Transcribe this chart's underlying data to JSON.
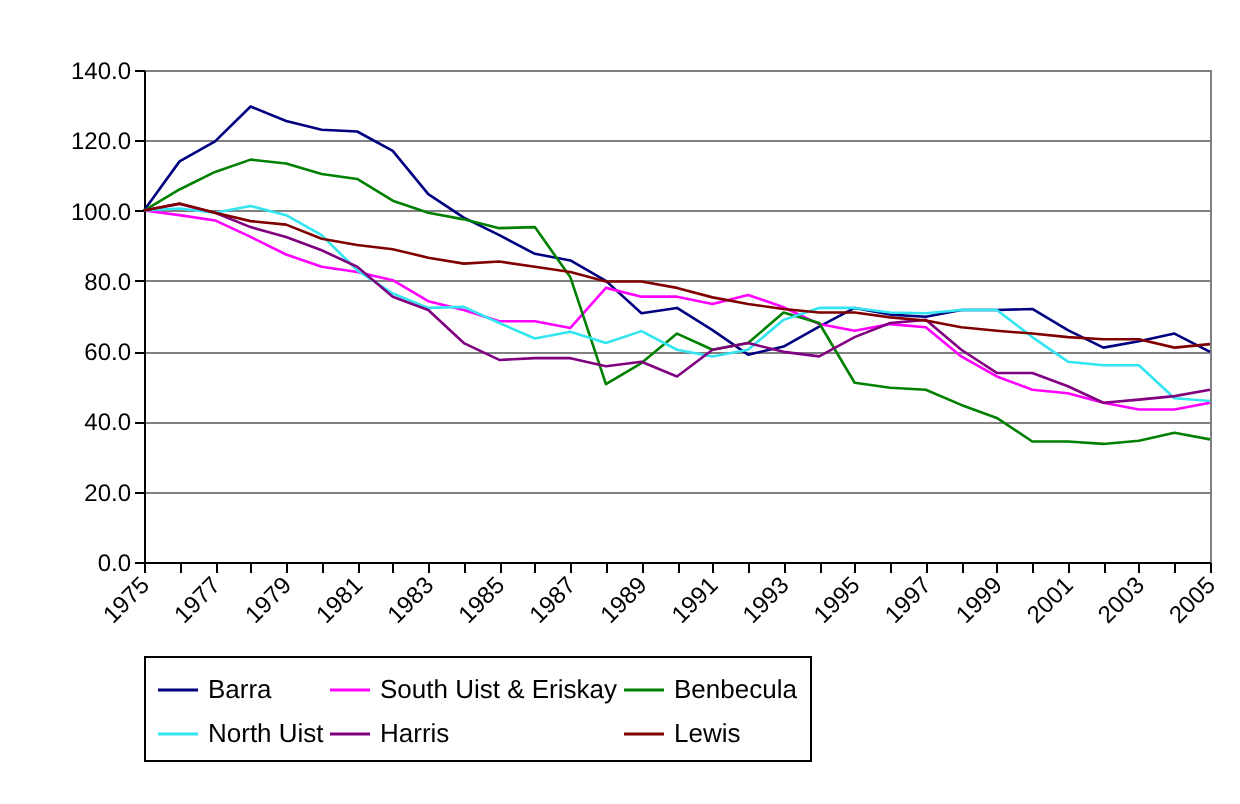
{
  "chart_data": {
    "type": "line",
    "categories": [
      "1975",
      null,
      "1977",
      null,
      "1979",
      null,
      "1981",
      null,
      "1983",
      null,
      "1985",
      null,
      "1987",
      null,
      "1989",
      null,
      "1991",
      null,
      "1993",
      null,
      "1995",
      null,
      "1997",
      null,
      "1999",
      null,
      "2001",
      null,
      "2003",
      null,
      "2005"
    ],
    "series": [
      {
        "name": "Barra",
        "color": "#000080",
        "values": [
          100,
          114,
          119.7,
          129.6,
          125.5,
          123,
          122.5,
          117,
          104.7,
          98,
          93,
          87.7,
          85.8,
          80,
          70.8,
          72.3,
          66,
          59,
          61.3,
          67,
          72.3,
          70.4,
          69.8,
          71.7,
          71.7,
          72,
          66,
          61,
          62.8,
          65,
          59.8
        ]
      },
      {
        "name": "South Uist & Eriskay",
        "color": "#ff00ff",
        "values": [
          100,
          98.7,
          97.2,
          92.5,
          87.5,
          84,
          82.5,
          80.2,
          74.2,
          71.7,
          68.5,
          68.5,
          66.6,
          78,
          75.5,
          75.5,
          73.4,
          76,
          72.5,
          67.7,
          65.8,
          67.7,
          66.8,
          58.5,
          52.8,
          49,
          48,
          45.3,
          43.4,
          43.4,
          45.3
        ]
      },
      {
        "name": "Benbecula",
        "color": "#008000",
        "values": [
          100,
          106,
          111,
          114.5,
          113.4,
          110.4,
          109,
          102.8,
          99.4,
          97.5,
          95,
          95.3,
          81,
          50.6,
          56.6,
          65,
          60.4,
          62.3,
          71,
          68,
          51,
          49.6,
          49,
          44.7,
          41,
          34.3,
          34.3,
          33.6,
          34.5,
          36.8,
          34.9
        ]
      },
      {
        "name": "North Uist",
        "color": "#33e5f0",
        "values": [
          100,
          100.6,
          99.4,
          101.3,
          98.7,
          93,
          83,
          76.4,
          72.3,
          72.6,
          68,
          63.6,
          65.5,
          62.3,
          65.7,
          60.4,
          58.5,
          60.4,
          68.9,
          72.3,
          72.3,
          71,
          70.8,
          71.7,
          71.7,
          64,
          57,
          56,
          56,
          46.6,
          45.8
        ]
      },
      {
        "name": "Harris",
        "color": "#800080",
        "values": [
          100,
          101.9,
          99.4,
          95.3,
          92.5,
          88.7,
          84,
          75.5,
          71.7,
          62.3,
          57.5,
          58,
          58,
          55.7,
          57,
          52.8,
          60.4,
          62.3,
          59.8,
          58.5,
          64,
          68,
          68.9,
          60.4,
          53.8,
          53.8,
          50,
          45.3,
          46.2,
          47.2,
          49
        ]
      },
      {
        "name": "Lewis",
        "color": "#800000",
        "values": [
          100,
          102,
          99.4,
          97,
          96,
          92,
          90.2,
          89,
          86.6,
          84.9,
          85.5,
          84,
          82.5,
          79.8,
          79.8,
          78,
          75.3,
          73.4,
          72,
          71,
          71,
          69.6,
          68.7,
          66.8,
          65.8,
          65,
          64,
          63.4,
          63.4,
          61,
          62
        ]
      }
    ],
    "ylim": [
      0,
      140
    ],
    "yticks": [
      {
        "value": 0,
        "label": "0.0"
      },
      {
        "value": 20,
        "label": "20.0"
      },
      {
        "value": 40,
        "label": "40.0"
      },
      {
        "value": 60,
        "label": "60.0"
      },
      {
        "value": 80,
        "label": "80.0"
      },
      {
        "value": 100,
        "label": "100.0"
      },
      {
        "value": 120,
        "label": "120.0"
      },
      {
        "value": 140,
        "label": "140.0"
      }
    ],
    "grid": "y",
    "legend": "bottom",
    "marker": "none",
    "line_style": "solid"
  }
}
